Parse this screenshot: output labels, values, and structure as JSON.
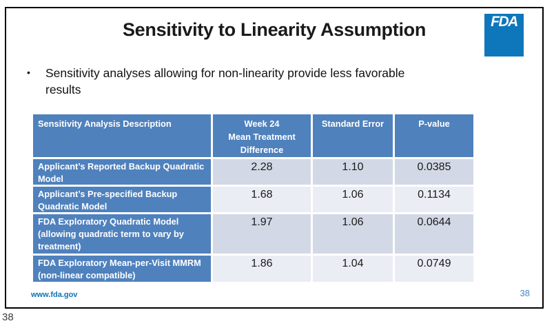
{
  "slide": {
    "title": "Sensitivity to Linearity Assumption",
    "logo_text": "FDA",
    "bullet_glyph": "•",
    "bullet_text": "Sensitivity analyses allowing for non-linearity provide less favorable results",
    "footer_url": "www.fda.gov",
    "page_number": "38"
  },
  "outside_page_number": "38",
  "table": {
    "headers": {
      "description": "Sensitivity Analysis Description",
      "week24": "Week 24\nMean Treatment\nDifference",
      "standard_error": "Standard Error",
      "p_value": "P-value"
    },
    "rows": [
      {
        "desc": "Applicant’s Reported Backup Quadratic Model",
        "diff": "2.28",
        "se": "1.10",
        "p": "0.0385"
      },
      {
        "desc": "Applicant’s Pre-specified Backup Quadratic Model",
        "diff": "1.68",
        "se": "1.06",
        "p": "0.1134"
      },
      {
        "desc": "FDA Exploratory Quadratic Model (allowing quadratic term to vary by treatment)",
        "diff": "1.97",
        "se": "1.06",
        "p": "0.0644"
      },
      {
        "desc": "FDA Exploratory Mean-per-Visit MMRM (non-linear compatible)",
        "diff": "1.86",
        "se": "1.04",
        "p": "0.0749"
      }
    ]
  },
  "colors": {
    "table_header_blue": "#4f81bd",
    "row_band_dark": "#d3d8e6",
    "row_band_light": "#ebedf4",
    "logo_blue": "#0e76bb",
    "footer_link_blue": "#0b72b8",
    "page_number_blue": "#4a86c8",
    "slide_border": "#000000"
  }
}
